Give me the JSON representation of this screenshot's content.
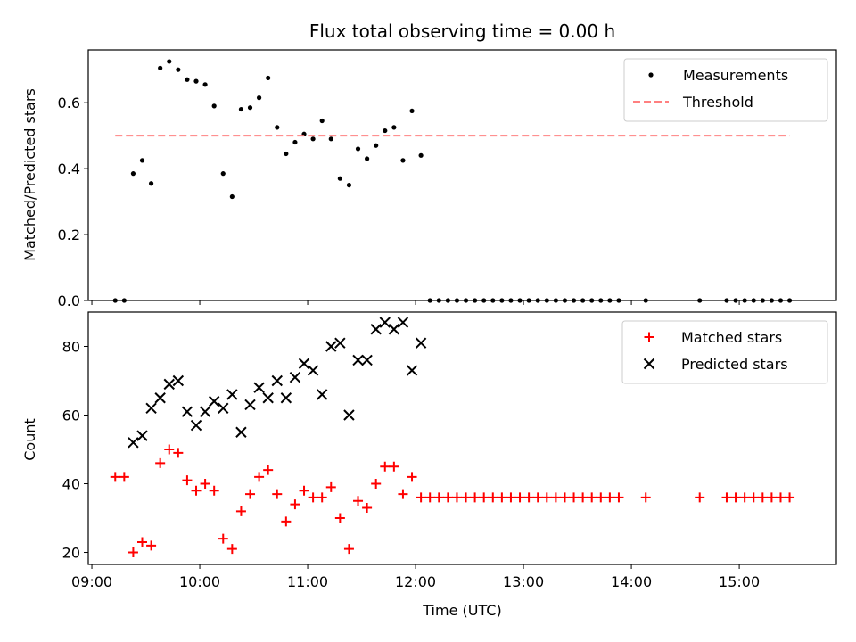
{
  "chart_data": [
    {
      "type": "scatter",
      "title": "Flux total observing time = 0.00 h",
      "xlabel": "",
      "ylabel": "Matched/Predicted stars",
      "ylim": [
        0.0,
        0.76
      ],
      "yticks": [
        0.0,
        0.2,
        0.4,
        0.6
      ],
      "ytick_labels": [
        "0.0",
        "0.2",
        "0.4",
        "0.6"
      ],
      "legend_position": "top-right",
      "series": [
        {
          "name": "Measurements",
          "style": "dot",
          "color": "#000000",
          "x": [
            "09:13",
            "09:18",
            "09:23",
            "09:28",
            "09:33",
            "09:38",
            "09:43",
            "09:48",
            "09:53",
            "09:58",
            "10:03",
            "10:08",
            "10:13",
            "10:18",
            "10:23",
            "10:28",
            "10:33",
            "10:38",
            "10:43",
            "10:48",
            "10:53",
            "10:58",
            "11:03",
            "11:08",
            "11:13",
            "11:18",
            "11:23",
            "11:28",
            "11:33",
            "11:38",
            "11:43",
            "11:48",
            "11:53",
            "11:58",
            "12:03",
            "12:08",
            "12:13",
            "12:18",
            "12:23",
            "12:28",
            "12:33",
            "12:38",
            "12:43",
            "12:48",
            "12:53",
            "12:58",
            "13:03",
            "13:08",
            "13:13",
            "13:18",
            "13:23",
            "13:28",
            "13:33",
            "13:38",
            "13:43",
            "13:48",
            "13:53",
            "14:08",
            "14:38",
            "14:53",
            "14:58",
            "15:03",
            "15:08",
            "15:13",
            "15:18",
            "15:23",
            "15:28"
          ],
          "y": [
            0.0,
            0.0,
            0.385,
            0.425,
            0.355,
            0.705,
            0.725,
            0.7,
            0.67,
            0.665,
            0.655,
            0.59,
            0.385,
            0.315,
            0.58,
            0.585,
            0.615,
            0.675,
            0.525,
            0.445,
            0.48,
            0.505,
            0.49,
            0.545,
            0.49,
            0.37,
            0.35,
            0.46,
            0.43,
            0.47,
            0.515,
            0.525,
            0.425,
            0.575,
            0.44,
            0.0,
            0.0,
            0.0,
            0.0,
            0.0,
            0.0,
            0.0,
            0.0,
            0.0,
            0.0,
            0.0,
            0.0,
            0.0,
            0.0,
            0.0,
            0.0,
            0.0,
            0.0,
            0.0,
            0.0,
            0.0,
            0.0,
            0.0,
            0.0,
            0.0,
            0.0,
            0.0,
            0.0,
            0.0,
            0.0,
            0.0,
            0.0
          ]
        },
        {
          "name": "Threshold",
          "style": "dashed-line",
          "color": "#ff8080",
          "x": [
            "09:13",
            "15:28"
          ],
          "y": [
            0.5,
            0.5
          ]
        }
      ]
    },
    {
      "type": "scatter",
      "title": "",
      "xlabel": "Time (UTC)",
      "ylabel": "Count",
      "ylim": [
        16.5,
        90
      ],
      "yticks": [
        20,
        40,
        60,
        80
      ],
      "ytick_labels": [
        "20",
        "40",
        "60",
        "80"
      ],
      "legend_position": "top-right",
      "series": [
        {
          "name": "Matched stars",
          "style": "plus",
          "color": "#ff0000",
          "x": [
            "09:13",
            "09:18",
            "09:23",
            "09:28",
            "09:33",
            "09:38",
            "09:43",
            "09:48",
            "09:53",
            "09:58",
            "10:03",
            "10:08",
            "10:13",
            "10:18",
            "10:23",
            "10:28",
            "10:33",
            "10:38",
            "10:43",
            "10:48",
            "10:53",
            "10:58",
            "11:03",
            "11:08",
            "11:13",
            "11:18",
            "11:23",
            "11:28",
            "11:33",
            "11:38",
            "11:43",
            "11:48",
            "11:53",
            "11:58",
            "12:03",
            "12:08",
            "12:13",
            "12:18",
            "12:23",
            "12:28",
            "12:33",
            "12:38",
            "12:43",
            "12:48",
            "12:53",
            "12:58",
            "13:03",
            "13:08",
            "13:13",
            "13:18",
            "13:23",
            "13:28",
            "13:33",
            "13:38",
            "13:43",
            "13:48",
            "13:53",
            "14:08",
            "14:38",
            "14:53",
            "14:58",
            "15:03",
            "15:08",
            "15:13",
            "15:18",
            "15:23",
            "15:28"
          ],
          "y": [
            42,
            42,
            20,
            23,
            22,
            46,
            50,
            49,
            41,
            38,
            40,
            38,
            24,
            21,
            32,
            37,
            42,
            44,
            37,
            29,
            34,
            38,
            36,
            36,
            39,
            30,
            21,
            35,
            33,
            40,
            45,
            45,
            37,
            42,
            36,
            36,
            36,
            36,
            36,
            36,
            36,
            36,
            36,
            36,
            36,
            36,
            36,
            36,
            36,
            36,
            36,
            36,
            36,
            36,
            36,
            36,
            36,
            36,
            36,
            36,
            36,
            36,
            36,
            36,
            36,
            36,
            36
          ]
        },
        {
          "name": "Predicted stars",
          "style": "x",
          "color": "#000000",
          "x": [
            "09:23",
            "09:28",
            "09:33",
            "09:38",
            "09:43",
            "09:48",
            "09:53",
            "09:58",
            "10:03",
            "10:08",
            "10:13",
            "10:18",
            "10:23",
            "10:28",
            "10:33",
            "10:38",
            "10:43",
            "10:48",
            "10:53",
            "10:58",
            "11:03",
            "11:08",
            "11:13",
            "11:18",
            "11:23",
            "11:28",
            "11:33",
            "11:38",
            "11:43",
            "11:48",
            "11:53",
            "11:58",
            "12:03"
          ],
          "y": [
            52,
            54,
            62,
            65,
            69,
            70,
            61,
            57,
            61,
            64,
            62,
            66,
            55,
            63,
            68,
            65,
            70,
            65,
            71,
            75,
            73,
            66,
            80,
            81,
            60,
            76,
            76,
            85,
            87,
            85,
            87,
            73,
            81
          ]
        }
      ]
    }
  ],
  "x_axis": {
    "range": [
      "08:58",
      "15:54"
    ],
    "ticks": [
      "09:00",
      "10:00",
      "11:00",
      "12:00",
      "13:00",
      "14:00",
      "15:00"
    ],
    "tick_labels": [
      "09:00",
      "10:00",
      "11:00",
      "12:00",
      "13:00",
      "14:00",
      "15:00"
    ]
  }
}
